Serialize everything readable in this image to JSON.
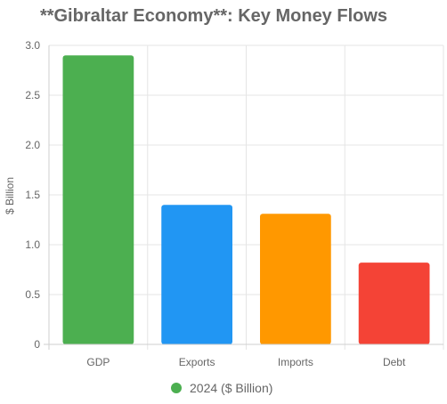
{
  "chart_data": {
    "type": "bar",
    "title": "**Gibraltar Economy**: Key Money Flows",
    "xlabel": "",
    "ylabel": "$ Billion",
    "categories": [
      "GDP",
      "Exports",
      "Imports",
      "Debt"
    ],
    "series": [
      {
        "name": "2024 ($ Billion)",
        "values": [
          2.9,
          1.4,
          1.31,
          0.82
        ],
        "colors": [
          "#4caf50",
          "#2196f3",
          "#ff9800",
          "#f44336"
        ]
      }
    ],
    "ylim": [
      0,
      3.0
    ],
    "yticks": [
      "0",
      "0.5",
      "1.0",
      "1.5",
      "2.0",
      "2.5",
      "3.0"
    ],
    "grid": true,
    "legend_position": "bottom"
  }
}
